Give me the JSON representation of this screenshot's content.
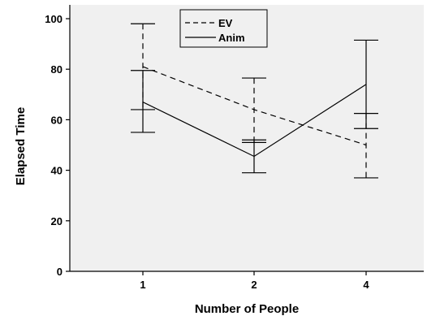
{
  "chart_data": {
    "type": "line",
    "xlabel": "Number of People",
    "ylabel": "Elapsed Time",
    "categories": [
      "1",
      "2",
      "4"
    ],
    "ylim": [
      0,
      100
    ],
    "yticks": [
      0,
      20,
      40,
      60,
      80,
      100
    ],
    "grid": false,
    "legend_position": "top-center",
    "background": "#f0f0f0",
    "series": [
      {
        "name": "EV",
        "line_style": "dashed",
        "values": [
          81,
          64,
          50
        ],
        "error_low": [
          64,
          51,
          37
        ],
        "error_high": [
          98,
          76.5,
          62.5
        ]
      },
      {
        "name": "Anim",
        "line_style": "solid",
        "values": [
          67,
          45.5,
          74
        ],
        "error_low": [
          55,
          39,
          56.5
        ],
        "error_high": [
          79.5,
          52,
          91.5
        ]
      }
    ]
  }
}
